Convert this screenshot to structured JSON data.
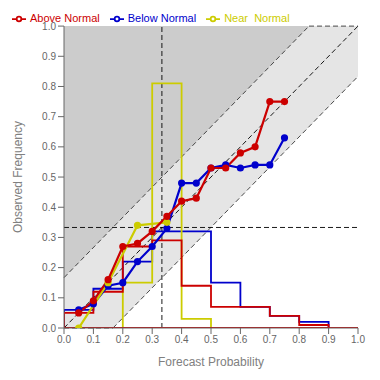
{
  "chart_data": {
    "type": "line",
    "xlabel": "Forecast Probability",
    "ylabel": "Observed Frequency",
    "xlim": [
      0.0,
      1.0
    ],
    "ylim": [
      0.0,
      1.0
    ],
    "xticks": [
      {
        "value": 0.0,
        "label": "0.0"
      },
      0.1,
      0.2,
      0.3,
      0.4,
      0.5,
      0.6,
      0.7,
      0.8,
      0.9,
      {
        "value": 1.0,
        "label": "1.0"
      }
    ],
    "yticks": [
      {
        "value": 0.0,
        "label": "0.0"
      },
      0.1,
      0.2,
      0.3,
      0.4,
      0.5,
      0.6,
      0.7,
      0.8,
      0.9,
      {
        "value": 1.0,
        "label": "1.0"
      }
    ],
    "grid": false,
    "legend": "upper left",
    "vline": 0.333,
    "hline": 0.333,
    "shading": {
      "color": "#CCCCCC",
      "band": 0.16666666666666666
    },
    "series": [
      {
        "name": "Below Normal",
        "color": "#0000CC",
        "marker": "circle",
        "line_style": "solid",
        "x": [
          0.05,
          0.1,
          0.15,
          0.2,
          0.25,
          0.3,
          0.35,
          0.4,
          0.45,
          0.5,
          0.55,
          0.6,
          0.65,
          0.7,
          0.75
        ],
        "values": [
          0.06,
          0.08,
          0.14,
          0.15,
          0.22,
          0.27,
          0.33,
          0.48,
          0.48,
          0.53,
          0.54,
          0.53,
          0.54,
          0.54,
          0.63
        ],
        "hist_bins": [
          0.0,
          0.1,
          0.2,
          0.3,
          0.4,
          0.5,
          0.6,
          0.7,
          0.8,
          0.9,
          1.0
        ],
        "hist_values": [
          0.06,
          0.13,
          0.22,
          0.32,
          0.32,
          0.15,
          0.07,
          0.04,
          0.02,
          0.0
        ]
      },
      {
        "name": "Near  Normal",
        "color": "#CCCC00",
        "marker": "circle",
        "line_style": "solid",
        "x": [
          0.05,
          0.15,
          0.25,
          0.35
        ],
        "values": [
          0.0,
          0.15,
          0.34,
          0.35
        ],
        "hist_bins": [
          0.0,
          0.1,
          0.2,
          0.3,
          0.4,
          0.5,
          0.6,
          0.7,
          0.8,
          0.9,
          1.0
        ],
        "hist_values": [
          0.0,
          0.0,
          0.15,
          0.81,
          0.03,
          0.0,
          0.0,
          0.0,
          0.0,
          0.0
        ]
      },
      {
        "name": "Above Normal",
        "color": "#CC0000",
        "marker": "circle",
        "line_style": "solid",
        "x": [
          0.05,
          0.1,
          0.15,
          0.2,
          0.25,
          0.3,
          0.35,
          0.4,
          0.45,
          0.5,
          0.55,
          0.6,
          0.65,
          0.7,
          0.75
        ],
        "values": [
          0.05,
          0.09,
          0.16,
          0.27,
          0.28,
          0.32,
          0.37,
          0.42,
          0.43,
          0.53,
          0.53,
          0.58,
          0.6,
          0.75,
          0.75
        ],
        "hist_bins": [
          0.0,
          0.1,
          0.2,
          0.3,
          0.4,
          0.5,
          0.6,
          0.7,
          0.8,
          0.9,
          1.0
        ],
        "hist_values": [
          0.05,
          0.12,
          0.27,
          0.29,
          0.14,
          0.07,
          0.07,
          0.04,
          0.01,
          0.0
        ]
      }
    ]
  }
}
